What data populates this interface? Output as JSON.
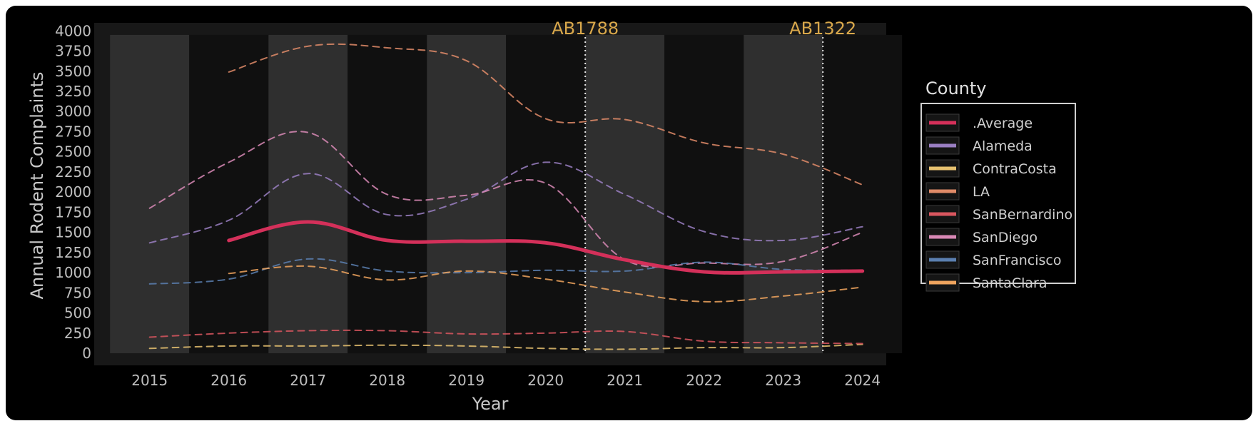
{
  "chart_data": {
    "type": "line",
    "xlabel": "Year",
    "ylabel": "Annual Rodent Complaints",
    "x": [
      2015,
      2016,
      2017,
      2018,
      2019,
      2020,
      2021,
      2022,
      2023,
      2024
    ],
    "xlim": [
      2014.3,
      2024.3
    ],
    "ylim": [
      -150,
      4100
    ],
    "yticks": [
      0,
      250,
      500,
      750,
      1000,
      1250,
      1500,
      1750,
      2000,
      2250,
      2500,
      2750,
      3000,
      3250,
      3500,
      3750,
      4000
    ],
    "xticks": [
      2015,
      2016,
      2017,
      2018,
      2019,
      2020,
      2021,
      2022,
      2023,
      2024
    ],
    "grid": false,
    "shaded_years": [
      2015,
      2017,
      2019,
      2021,
      2023
    ],
    "annotations": [
      {
        "label": "AB1788",
        "x": 2020.5
      },
      {
        "label": "AB1322",
        "x": 2023.5
      }
    ],
    "legend": {
      "title": "County",
      "placement": "right"
    },
    "series": [
      {
        "name": ".Average",
        "color": "#d4305a",
        "style": "solid",
        "values": [
          null,
          1400,
          1630,
          1400,
          1390,
          1370,
          1160,
          1010,
          1010,
          1020
        ]
      },
      {
        "name": "Alameda",
        "color": "#9a7fc2",
        "style": "dashed",
        "values": [
          1370,
          1650,
          2230,
          1720,
          1910,
          2370,
          1970,
          1510,
          1400,
          1570
        ]
      },
      {
        "name": "ContraCosta",
        "color": "#e6c170",
        "style": "dashed",
        "values": [
          60,
          90,
          90,
          100,
          90,
          60,
          50,
          70,
          70,
          110
        ]
      },
      {
        "name": "LA",
        "color": "#e08b68",
        "style": "dashed",
        "values": [
          null,
          3490,
          3810,
          3790,
          3630,
          2910,
          2900,
          2610,
          2470,
          2090
        ]
      },
      {
        "name": "SanBernardino",
        "color": "#d9565f",
        "style": "dashed",
        "values": [
          200,
          250,
          280,
          280,
          240,
          250,
          270,
          150,
          130,
          120
        ]
      },
      {
        "name": "SanDiego",
        "color": "#d989b6",
        "style": "dashed",
        "values": [
          1800,
          2370,
          2740,
          1970,
          1960,
          2110,
          1160,
          1120,
          1140,
          1500
        ]
      },
      {
        "name": "SanFrancisco",
        "color": "#5b7fb0",
        "style": "dashed",
        "values": [
          860,
          920,
          1170,
          1020,
          1000,
          1030,
          1020,
          1130,
          1040,
          1030
        ]
      },
      {
        "name": "SantaClara",
        "color": "#f0a45e",
        "style": "dashed",
        "values": [
          null,
          990,
          1080,
          910,
          1020,
          920,
          760,
          640,
          710,
          820
        ]
      }
    ]
  }
}
